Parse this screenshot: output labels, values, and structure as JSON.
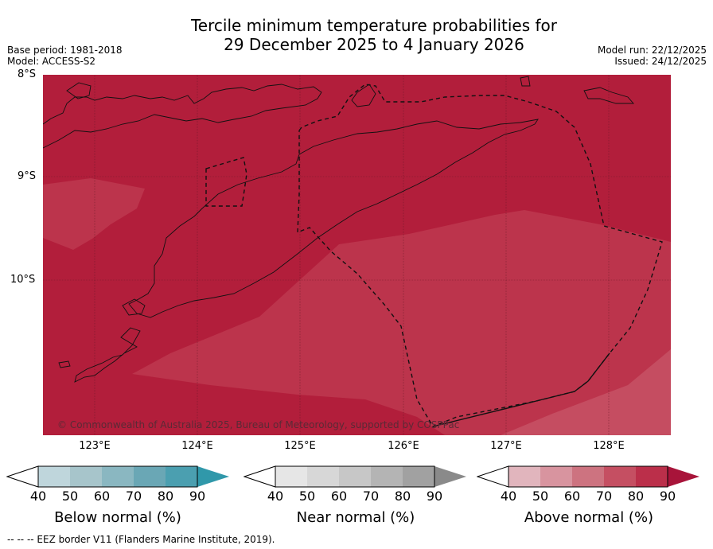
{
  "header": {
    "title_line1": "Tercile minimum temperature probabilities for",
    "title_line2": "29 December 2025 to 4 January 2026",
    "base_period": "Base period: 1981-2018",
    "model": "Model: ACCESS-S2",
    "model_run": "Model run: 22/12/2025",
    "issued": "Issued: 24/12/2025"
  },
  "map": {
    "lat_labels": [
      "8°S",
      "9°S",
      "10°S"
    ],
    "lon_labels": [
      "123°E",
      "124°E",
      "125°E",
      "126°E",
      "127°E",
      "128°E"
    ],
    "copyright": "© Commonwealth of Australia 2025, Bureau of Meteorology, supported by COSPPac",
    "colors": {
      "above_90": "#b21e3b",
      "above_80": "#bc344c",
      "above_70": "#c54d61"
    }
  },
  "colorbars": {
    "ticks": [
      "40",
      "50",
      "60",
      "70",
      "80",
      "90"
    ],
    "below": {
      "label": "Below normal (%)",
      "colors": [
        "#bfd6dc",
        "#a7c5cb",
        "#8ab7c1",
        "#6aa7b5",
        "#4b9fb0",
        "#3098aa"
      ]
    },
    "near": {
      "label": "Near normal (%)",
      "colors": [
        "#e6e6e6",
        "#d7d7d7",
        "#c7c7c7",
        "#b4b4b4",
        "#a1a1a1",
        "#8a8a8a"
      ]
    },
    "above": {
      "label": "Above normal (%)",
      "colors": [
        "#e1b5bd",
        "#d8949f",
        "#cd7380",
        "#c54f62",
        "#bb2f4a",
        "#a8143a"
      ]
    }
  },
  "footer": {
    "eez_note": "--  --  -- EEZ border V11 (Flanders Marine Institute, 2019)."
  }
}
